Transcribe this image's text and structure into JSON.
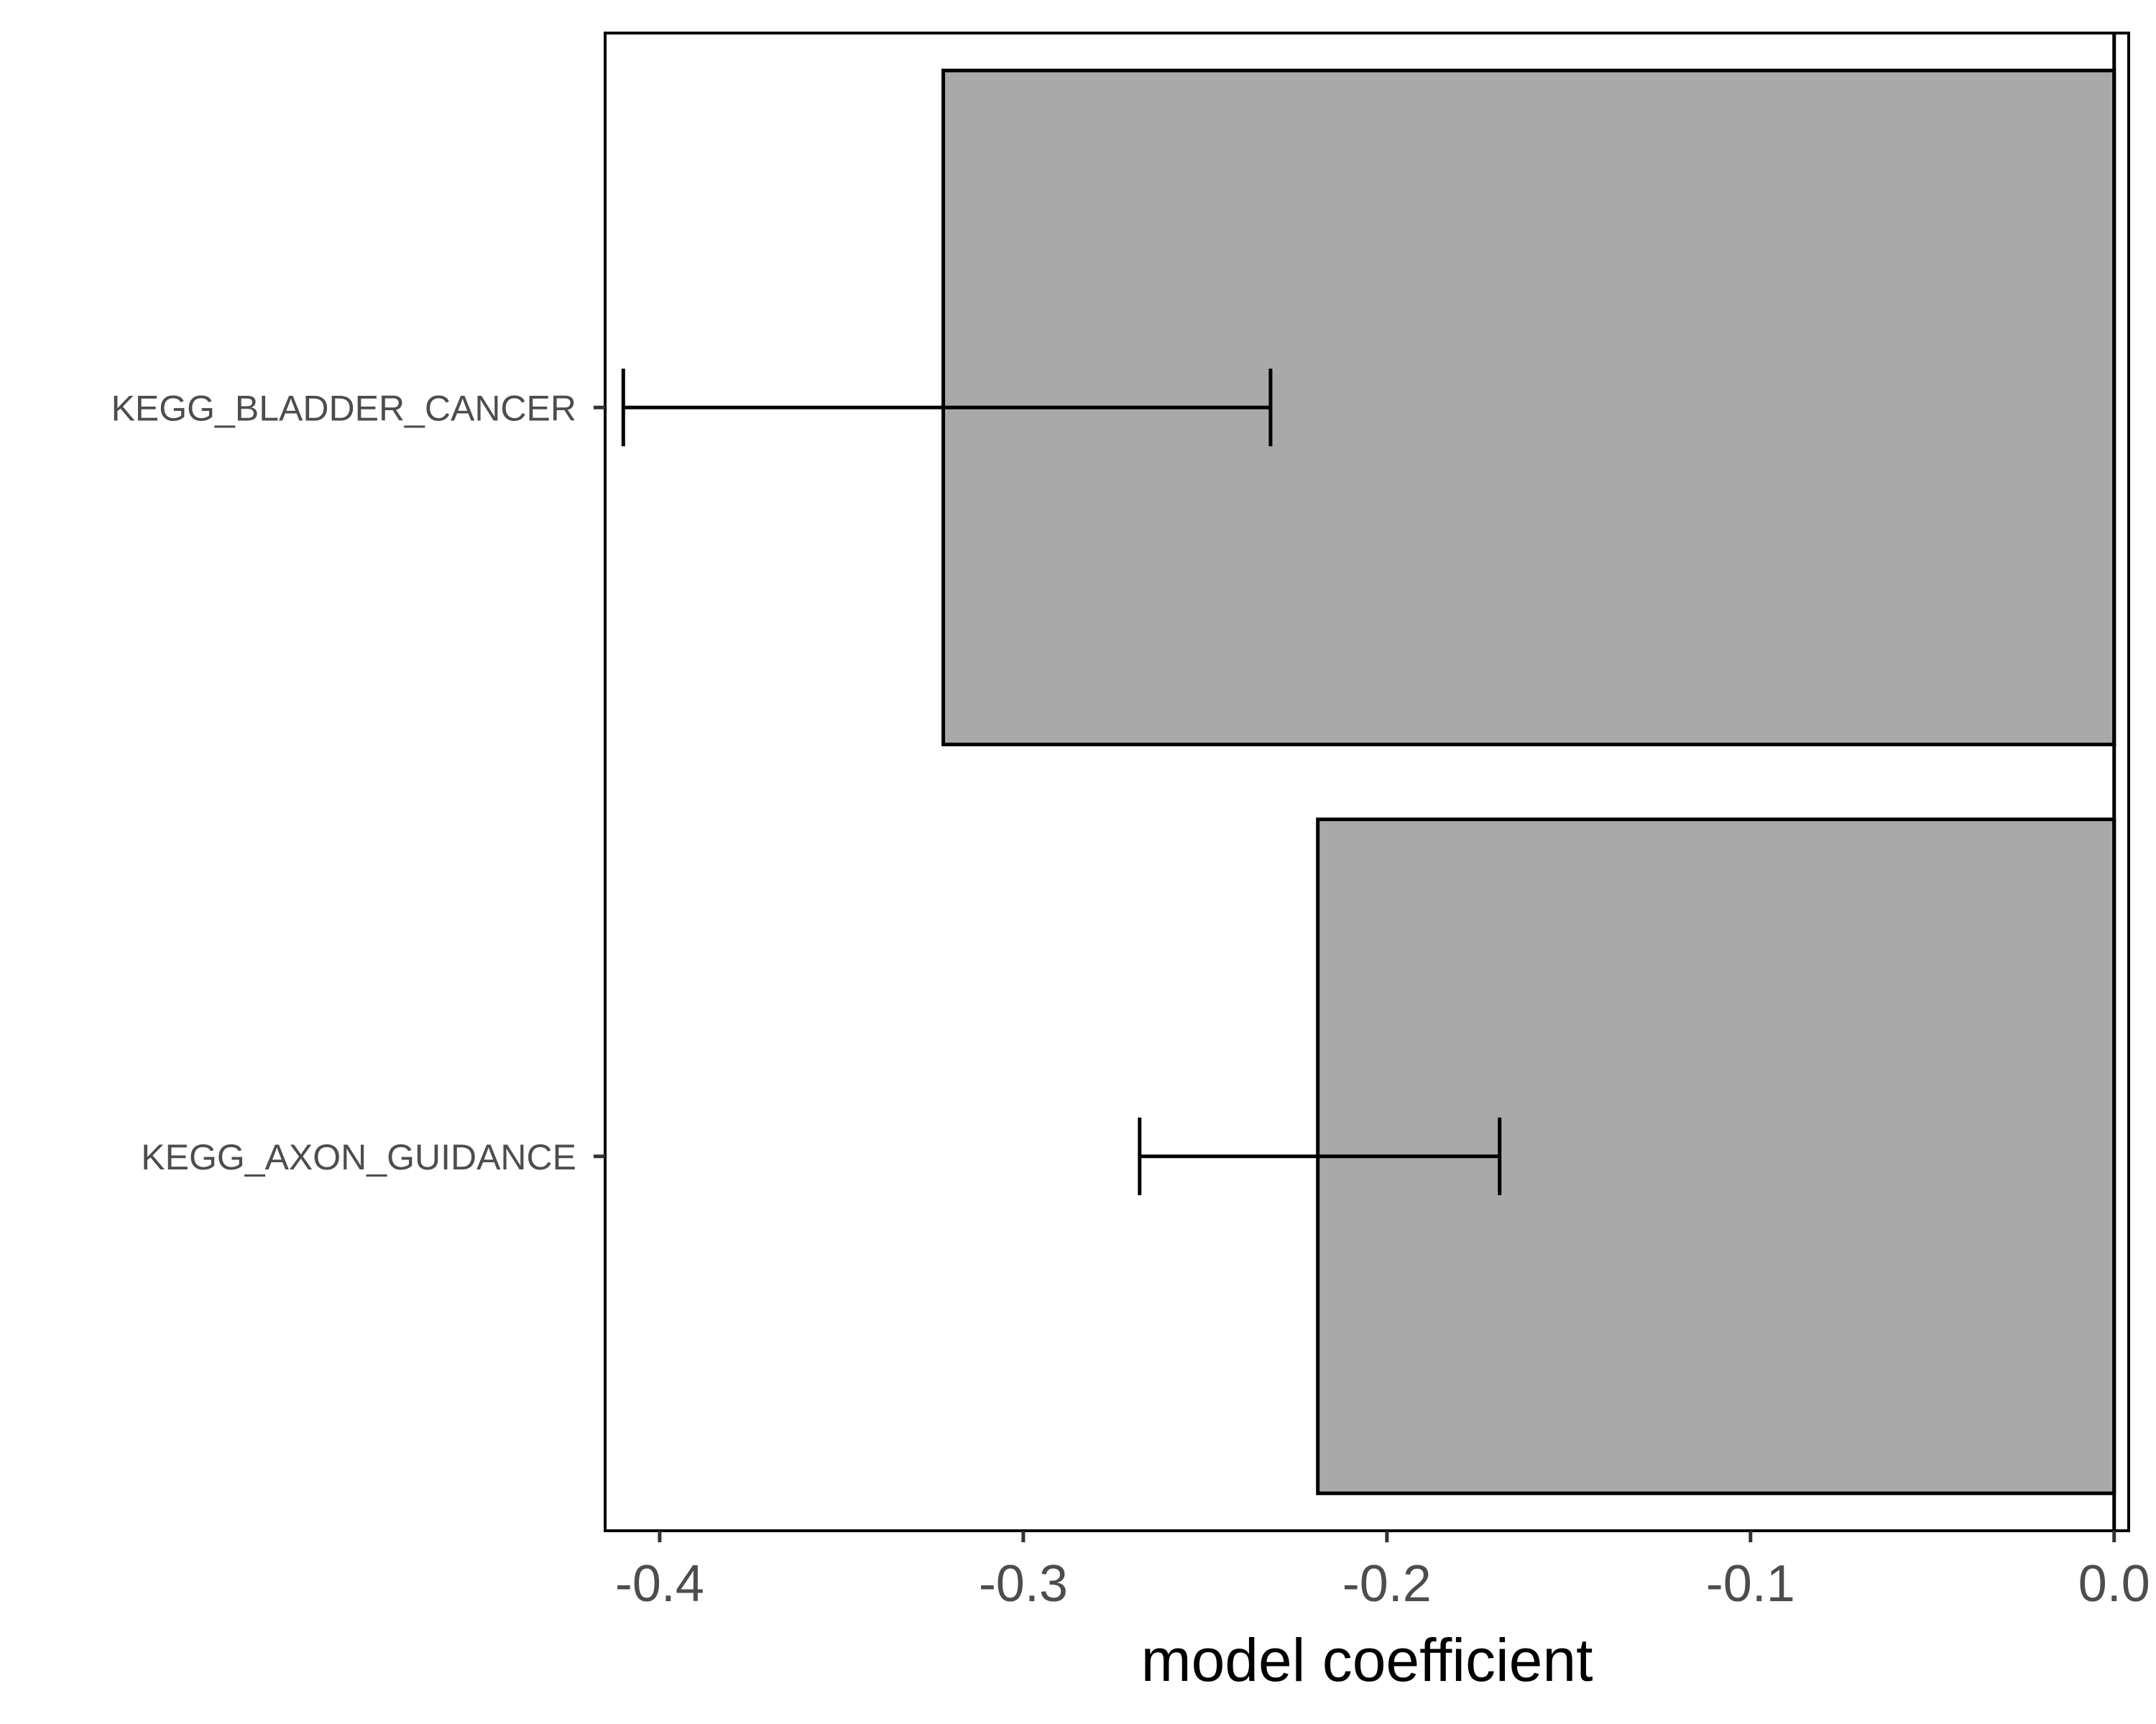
{
  "chart_data": {
    "type": "bar",
    "orientation": "horizontal",
    "title": "",
    "xlabel": "model coefficient",
    "ylabel": "",
    "categories": [
      "KEGG_BLADDER_CANCER",
      "KEGG_AXON_GUIDANCE"
    ],
    "values": [
      -0.322,
      -0.219
    ],
    "error_low": [
      -0.41,
      -0.268
    ],
    "error_high": [
      -0.232,
      -0.169
    ],
    "xlim": [
      -0.415,
      0.004
    ],
    "x_ticks": [
      -0.4,
      -0.3,
      -0.2,
      -0.1,
      0.0
    ],
    "x_tick_labels": [
      "-0.4",
      "-0.3",
      "-0.2",
      "-0.1",
      "0.0"
    ],
    "grid": false,
    "legend": "none",
    "colors": {
      "bar_fill": "#a9a9a9",
      "bar_stroke": "#000000",
      "axis": "#000000"
    }
  }
}
